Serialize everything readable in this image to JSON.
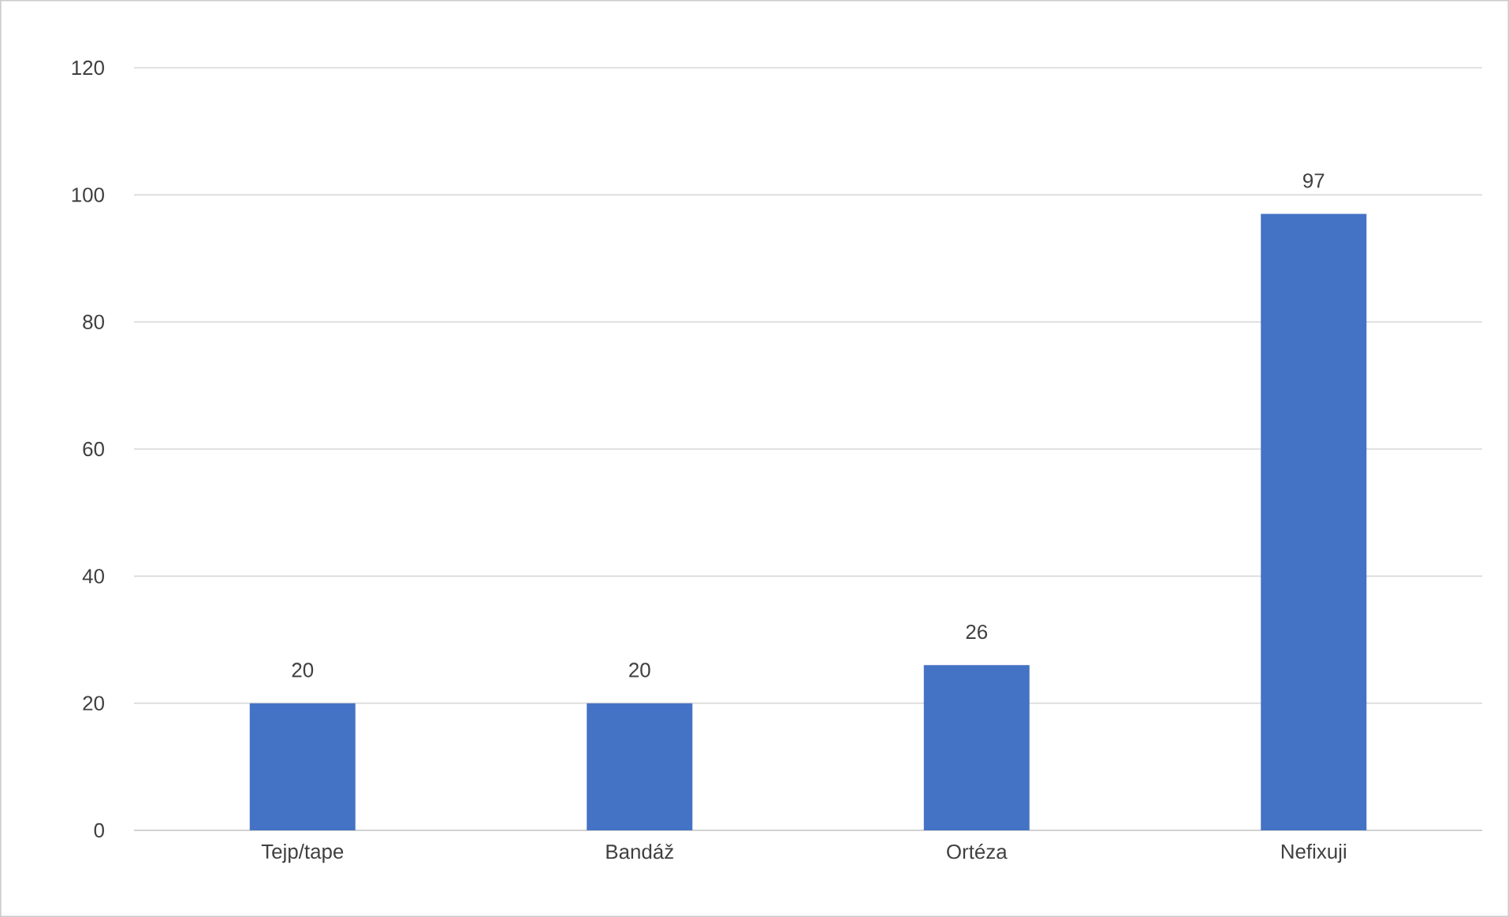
{
  "chart_data": {
    "type": "bar",
    "categories": [
      "Tejp/tape",
      "Bandáž",
      "Ortéza",
      "Nefixuji"
    ],
    "values": [
      20,
      20,
      26,
      97
    ],
    "color": "#4472c4",
    "ylim": [
      0,
      120
    ],
    "yticks": [
      0,
      20,
      40,
      60,
      80,
      100,
      120
    ],
    "grid": "y",
    "data_labels": true
  }
}
